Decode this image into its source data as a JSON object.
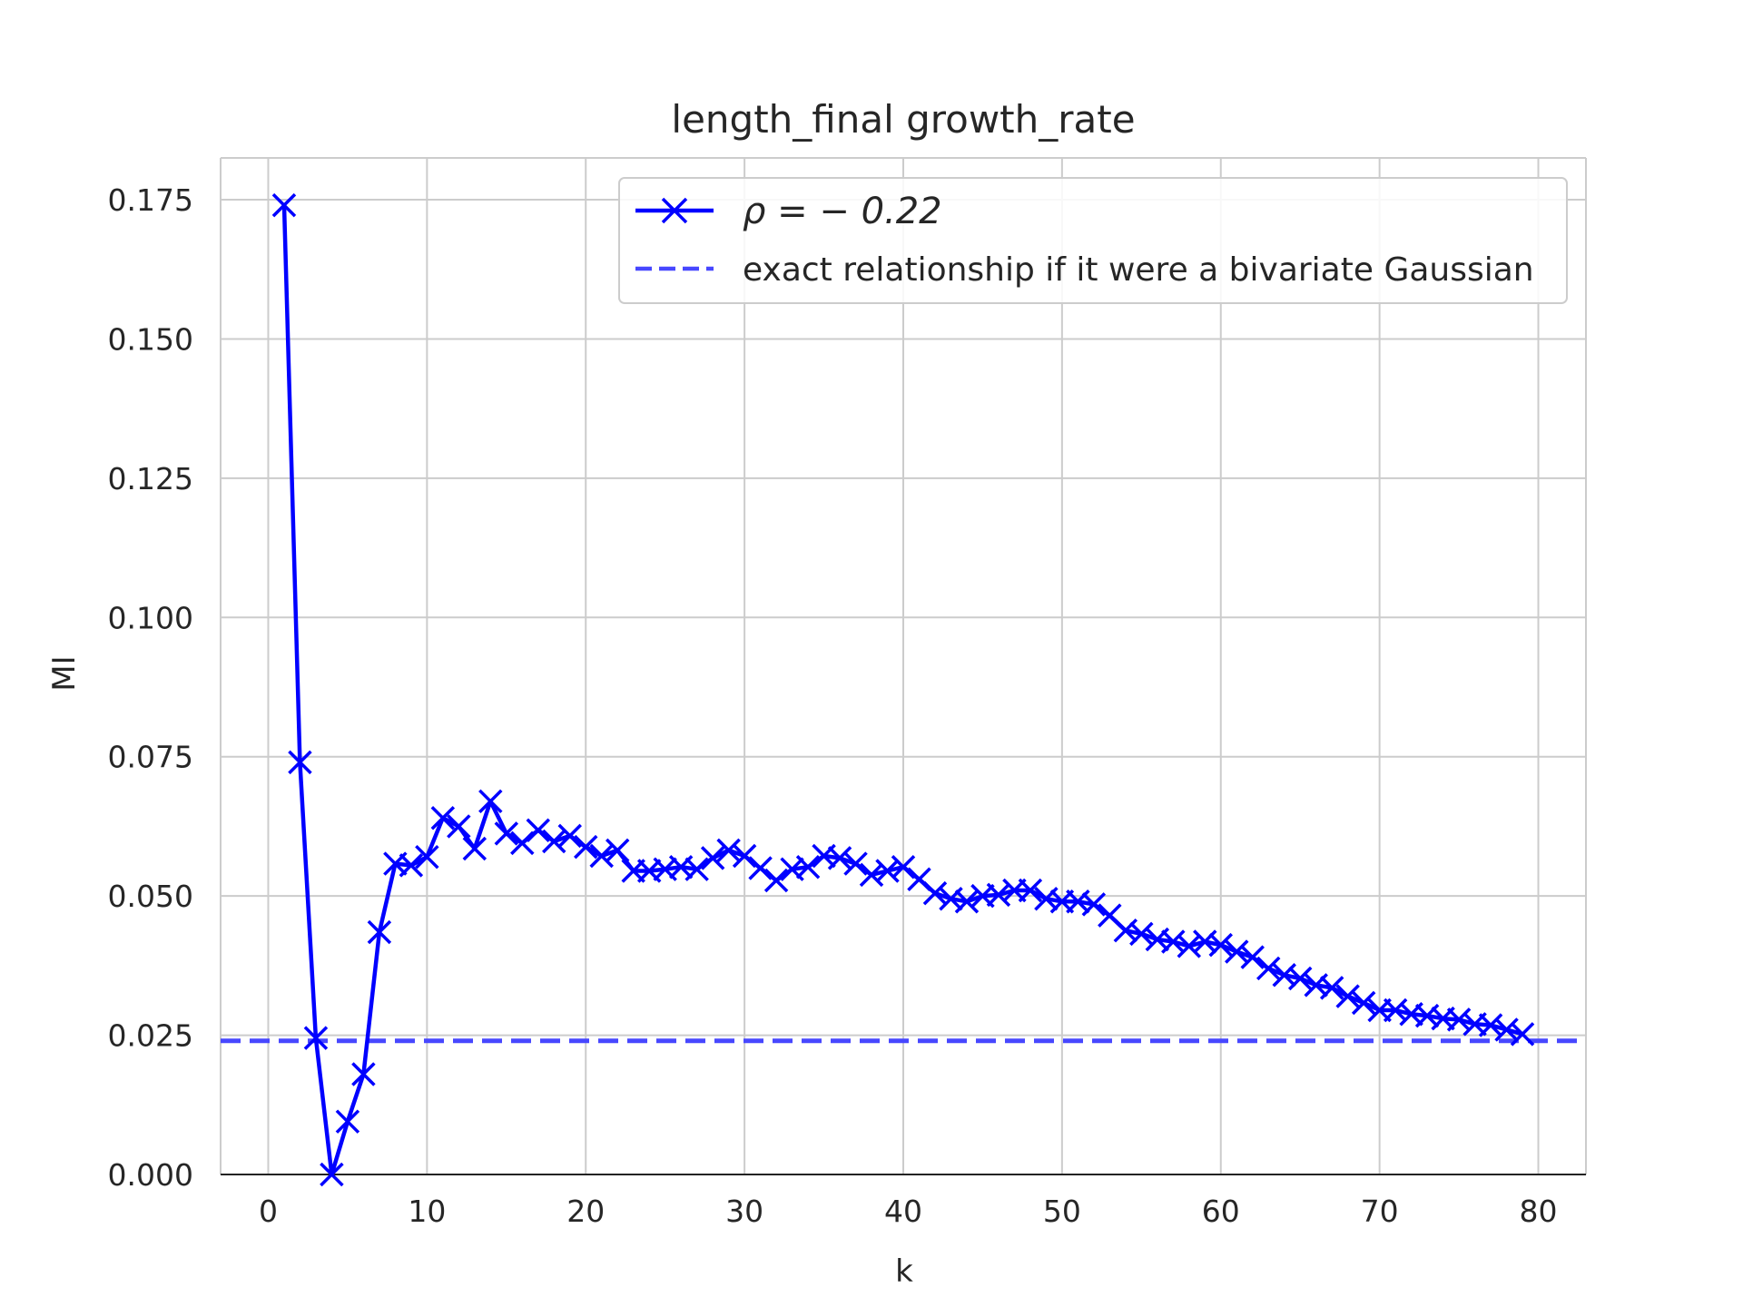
{
  "chart_data": {
    "type": "line",
    "title": "length_final growth_rate",
    "xlabel": "k",
    "ylabel": "MI",
    "xlim": [
      -3,
      83
    ],
    "ylim": [
      0,
      0.1825
    ],
    "xticks": [
      0,
      10,
      20,
      30,
      40,
      50,
      60,
      70,
      80
    ],
    "xtick_labels": [
      "0",
      "10",
      "20",
      "30",
      "40",
      "50",
      "60",
      "70",
      "80"
    ],
    "yticks": [
      0.0,
      0.025,
      0.05,
      0.075,
      0.1,
      0.125,
      0.15,
      0.175
    ],
    "ytick_labels": [
      "0.000",
      "0.025",
      "0.050",
      "0.075",
      "0.100",
      "0.125",
      "0.150",
      "0.175"
    ],
    "grid": true,
    "legend_position": "top-right",
    "series": [
      {
        "name": "ρ = − 0.22",
        "color": "#0000ff",
        "marker": "x",
        "line_style": "solid",
        "x": [
          1,
          2,
          3,
          4,
          5,
          6,
          7,
          8,
          9,
          10,
          11,
          12,
          13,
          14,
          15,
          16,
          17,
          18,
          19,
          20,
          21,
          22,
          23,
          24,
          25,
          26,
          27,
          28,
          29,
          30,
          31,
          32,
          33,
          34,
          35,
          36,
          37,
          38,
          39,
          40,
          41,
          42,
          43,
          44,
          45,
          46,
          47,
          48,
          49,
          50,
          51,
          52,
          53,
          54,
          55,
          56,
          57,
          58,
          59,
          60,
          61,
          62,
          63,
          64,
          65,
          66,
          67,
          68,
          69,
          70,
          71,
          72,
          73,
          74,
          75,
          76,
          77,
          78,
          79
        ],
        "y": [
          0.174,
          0.074,
          0.0245,
          0.0,
          0.0095,
          0.018,
          0.0435,
          0.0558,
          0.0555,
          0.057,
          0.064,
          0.0625,
          0.0585,
          0.067,
          0.0612,
          0.0595,
          0.0618,
          0.0598,
          0.0608,
          0.0588,
          0.0572,
          0.0582,
          0.0545,
          0.0545,
          0.0548,
          0.0552,
          0.0548,
          0.0568,
          0.0582,
          0.0572,
          0.055,
          0.0528,
          0.0548,
          0.0552,
          0.0572,
          0.0568,
          0.0558,
          0.0538,
          0.0545,
          0.0552,
          0.053,
          0.0505,
          0.0495,
          0.049,
          0.05,
          0.0502,
          0.051,
          0.051,
          0.0495,
          0.049,
          0.049,
          0.0485,
          0.0465,
          0.0438,
          0.0432,
          0.0422,
          0.0418,
          0.041,
          0.0418,
          0.0412,
          0.04,
          0.039,
          0.037,
          0.0358,
          0.0352,
          0.034,
          0.0335,
          0.032,
          0.0308,
          0.0295,
          0.0295,
          0.0288,
          0.0285,
          0.028,
          0.0278,
          0.027,
          0.0268,
          0.026,
          0.0252
        ]
      },
      {
        "name": "exact relationship if it were a bivariate Gaussian",
        "color": "#4747ff",
        "line_style": "dashed",
        "y_constant": 0.024
      }
    ]
  }
}
